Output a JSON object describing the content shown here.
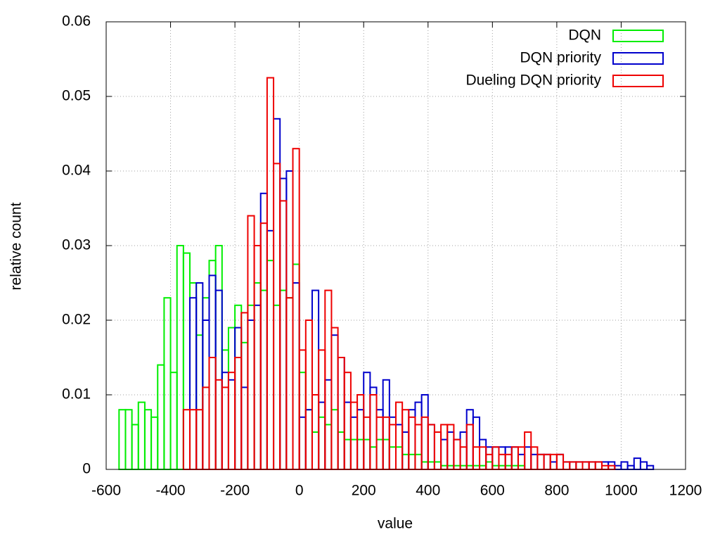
{
  "chart_data": {
    "type": "histogram",
    "xlabel": "value",
    "ylabel": "relative count",
    "xlim": [
      -600,
      1200
    ],
    "ylim": [
      0,
      0.06
    ],
    "xticks": [
      -600,
      -400,
      -200,
      0,
      200,
      400,
      600,
      800,
      1000,
      1200
    ],
    "yticks": [
      0,
      0.01,
      0.02,
      0.03,
      0.04,
      0.05,
      0.06
    ],
    "grid": true,
    "legend": "upper right",
    "series": [
      {
        "name": "DQN",
        "color": "#00ee00",
        "bins": [
          -560,
          -540,
          -520,
          -500,
          -480,
          -460,
          -440,
          -420,
          -400,
          -380,
          -360,
          -340,
          -320,
          -300,
          -280,
          -260,
          -240,
          -220,
          -200,
          -180,
          -160,
          -140,
          -120,
          -100,
          -80,
          -60,
          -40,
          -20,
          0,
          20,
          40,
          60,
          80,
          100,
          120,
          140,
          160,
          180,
          200,
          220,
          240,
          260,
          280,
          300,
          320,
          340,
          360,
          380,
          400,
          420,
          440,
          460,
          480,
          500,
          520,
          540,
          560,
          580,
          600,
          620,
          640,
          660,
          680,
          700
        ],
        "values": [
          0.008,
          0.008,
          0.006,
          0.009,
          0.008,
          0.007,
          0.014,
          0.023,
          0.013,
          0.03,
          0.029,
          0.025,
          0.018,
          0.023,
          0.028,
          0.03,
          0.016,
          0.019,
          0.022,
          0.017,
          0.022,
          0.025,
          0.024,
          0.028,
          0.022,
          0.024,
          0.023,
          0.0275,
          0.013,
          0.008,
          0.005,
          0.007,
          0.006,
          0.008,
          0.005,
          0.004,
          0.004,
          0.004,
          0.004,
          0.003,
          0.004,
          0.004,
          0.003,
          0.003,
          0.002,
          0.002,
          0.002,
          0.001,
          0.001,
          0.001,
          0.0005,
          0.0005,
          0.0005,
          0.0005,
          0.0005,
          0.0005,
          0.0005,
          0.001,
          0.0005,
          0.0005,
          0.0005,
          0.0005,
          0.0005
        ]
      },
      {
        "name": "DQN priority",
        "color": "#0000cc",
        "bins": [
          -340,
          -320,
          -300,
          -280,
          -260,
          -240,
          -220,
          -200,
          -180,
          -160,
          -140,
          -120,
          -100,
          -80,
          -60,
          -40,
          -20,
          0,
          20,
          40,
          60,
          80,
          100,
          120,
          140,
          160,
          180,
          200,
          220,
          240,
          260,
          280,
          300,
          320,
          340,
          360,
          380,
          400,
          420,
          440,
          460,
          480,
          500,
          520,
          540,
          560,
          580,
          600,
          620,
          640,
          660,
          680,
          700,
          720,
          740,
          760,
          780,
          800,
          820,
          840,
          860,
          880,
          900,
          920,
          940,
          960,
          980,
          1000,
          1020,
          1040,
          1060,
          1080,
          1100
        ],
        "values": [
          0.023,
          0.025,
          0.02,
          0.026,
          0.024,
          0.013,
          0.012,
          0.019,
          0.011,
          0.02,
          0.022,
          0.037,
          0.032,
          0.047,
          0.039,
          0.04,
          0.025,
          0.007,
          0.008,
          0.024,
          0.009,
          0.012,
          0.018,
          0.015,
          0.009,
          0.007,
          0.008,
          0.013,
          0.011,
          0.008,
          0.012,
          0.007,
          0.006,
          0.005,
          0.008,
          0.009,
          0.01,
          0.006,
          0.005,
          0.004,
          0.005,
          0.004,
          0.005,
          0.008,
          0.007,
          0.004,
          0.003,
          0.003,
          0.003,
          0.003,
          0.003,
          0.002,
          0.003,
          0.002,
          0.002,
          0.002,
          0.001,
          0.002,
          0.001,
          0.001,
          0.001,
          0.001,
          0.001,
          0.001,
          0.001,
          0.001,
          0.0005,
          0.001,
          0.0005,
          0.0015,
          0.001,
          0.0005
        ]
      },
      {
        "name": "Dueling DQN priority",
        "color": "#ee0000",
        "bins": [
          -360,
          -340,
          -320,
          -300,
          -280,
          -260,
          -240,
          -220,
          -200,
          -180,
          -160,
          -140,
          -120,
          -100,
          -80,
          -60,
          -40,
          -20,
          0,
          20,
          40,
          60,
          80,
          100,
          120,
          140,
          160,
          180,
          200,
          220,
          240,
          260,
          280,
          300,
          320,
          340,
          360,
          380,
          400,
          420,
          440,
          460,
          480,
          500,
          520,
          540,
          560,
          580,
          600,
          620,
          640,
          660,
          680,
          700,
          720,
          740,
          760,
          780,
          800,
          820,
          840,
          860,
          880,
          900,
          920,
          940,
          960,
          980
        ],
        "values": [
          0.008,
          0.008,
          0.008,
          0.011,
          0.015,
          0.012,
          0.011,
          0.013,
          0.015,
          0.021,
          0.034,
          0.03,
          0.033,
          0.0525,
          0.041,
          0.036,
          0.023,
          0.043,
          0.016,
          0.02,
          0.01,
          0.016,
          0.024,
          0.019,
          0.015,
          0.013,
          0.009,
          0.01,
          0.007,
          0.01,
          0.007,
          0.007,
          0.006,
          0.009,
          0.008,
          0.007,
          0.006,
          0.007,
          0.006,
          0.005,
          0.006,
          0.006,
          0.004,
          0.003,
          0.006,
          0.003,
          0.003,
          0.002,
          0.003,
          0.002,
          0.002,
          0.003,
          0.003,
          0.005,
          0.003,
          0.002,
          0.002,
          0.002,
          0.002,
          0.001,
          0.001,
          0.001,
          0.001,
          0.001,
          0.001,
          0.0005,
          0.0005
        ]
      }
    ]
  }
}
